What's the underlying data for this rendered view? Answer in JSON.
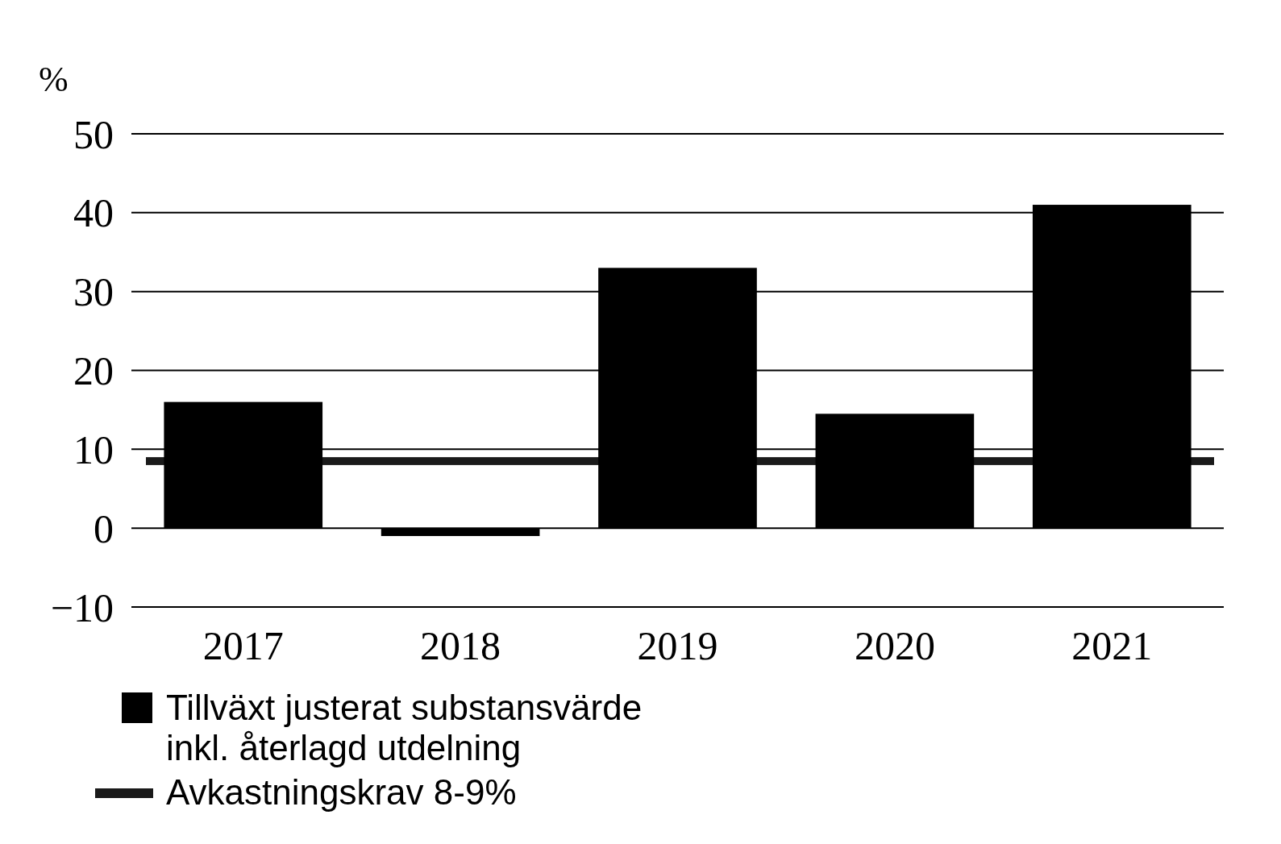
{
  "chart_data": {
    "type": "bar",
    "ylabel": "%",
    "categories": [
      "2017",
      "2018",
      "2019",
      "2020",
      "2021"
    ],
    "series": [
      {
        "name": "Tillväxt justerat substansvärde inkl. återlagd utdelning",
        "color": "#000000",
        "values": [
          16,
          -1,
          33,
          14.5,
          41
        ]
      }
    ],
    "bands": [
      {
        "axis": "y",
        "from": 8,
        "to": 9,
        "label": "Avkastningskrav 8-9%",
        "color": "#1a1a1a"
      }
    ],
    "ylim": [
      -10,
      50
    ],
    "yticks": [
      -10,
      0,
      10,
      20,
      30,
      40,
      50
    ],
    "grid": "y",
    "legend": "bottom"
  }
}
